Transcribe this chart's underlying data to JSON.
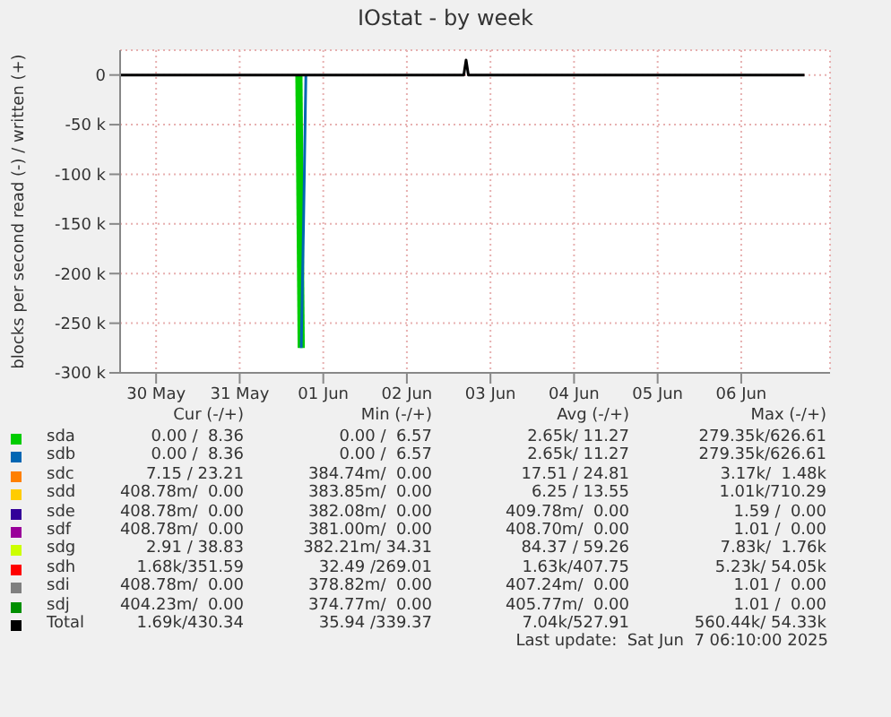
{
  "chart_data": {
    "type": "line",
    "title": "IOstat - by week",
    "ylabel": "blocks per second read (-) / written (+)",
    "x": [
      "2025-05-30T01:40",
      "2025-06-01T05:00",
      "2025-06-01T05:40",
      "2025-06-01T06:20",
      "2025-06-01T07:00",
      "2025-06-03T04:20",
      "2025-06-03T05:00",
      "2025-06-03T05:40",
      "2025-06-07T06:10"
    ],
    "xlim": [
      "2025-05-30T01:40",
      "2025-06-07T13:30"
    ],
    "xticks": [
      {
        "value": "2025-05-30T12:00",
        "label": "30 May"
      },
      {
        "value": "2025-05-31T12:00",
        "label": "31 May"
      },
      {
        "value": "2025-06-01T12:00",
        "label": "01 Jun"
      },
      {
        "value": "2025-06-02T12:00",
        "label": "02 Jun"
      },
      {
        "value": "2025-06-03T12:00",
        "label": "03 Jun"
      },
      {
        "value": "2025-06-04T12:00",
        "label": "04 Jun"
      },
      {
        "value": "2025-06-05T12:00",
        "label": "05 Jun"
      },
      {
        "value": "2025-06-06T12:00",
        "label": "06 Jun"
      }
    ],
    "ylim": [
      -300000,
      25000
    ],
    "yticks": [
      0,
      {
        "value": -50000,
        "label": "-50 k"
      },
      {
        "value": -100000,
        "label": "-100 k"
      },
      {
        "value": -150000,
        "label": "-150 k"
      },
      {
        "value": -200000,
        "label": "-200 k"
      },
      {
        "value": -250000,
        "label": "-250 k"
      },
      {
        "value": -300000,
        "label": "-300 k"
      }
    ],
    "grid": true,
    "legend": "bottom",
    "marker": "none",
    "line_style": "solid",
    "series": [
      {
        "name": "sda",
        "color": "#00cc00",
        "values": [
          null,
          0,
          -275000,
          null,
          null,
          null,
          null,
          null,
          null
        ]
      },
      {
        "name": "sdb",
        "color": "#0066b3",
        "values": [
          null,
          null,
          -275000,
          -150000,
          0,
          null,
          null,
          null,
          null
        ]
      },
      {
        "name": "sdc",
        "color": "#ff8000",
        "values": [
          null,
          null,
          null,
          null,
          null,
          null,
          null,
          null,
          null
        ]
      },
      {
        "name": "sdd",
        "color": "#ffcc00",
        "values": [
          null,
          null,
          null,
          null,
          null,
          null,
          null,
          null,
          null
        ]
      },
      {
        "name": "sde",
        "color": "#330099",
        "values": [
          null,
          null,
          null,
          null,
          null,
          null,
          null,
          null,
          null
        ]
      },
      {
        "name": "sdf",
        "color": "#990099",
        "values": [
          null,
          null,
          null,
          null,
          null,
          null,
          null,
          null,
          null
        ]
      },
      {
        "name": "sdg",
        "color": "#ccff00",
        "values": [
          null,
          null,
          null,
          null,
          null,
          null,
          null,
          null,
          null
        ]
      },
      {
        "name": "sdh",
        "color": "#ff0000",
        "values": [
          null,
          null,
          null,
          null,
          null,
          null,
          null,
          null,
          null
        ]
      },
      {
        "name": "sdi",
        "color": "#808080",
        "values": [
          null,
          null,
          null,
          null,
          null,
          null,
          null,
          null,
          null
        ]
      },
      {
        "name": "sdj",
        "color": "#008f00",
        "values": [
          null,
          null,
          null,
          null,
          null,
          null,
          null,
          null,
          null
        ]
      },
      {
        "name": "Total",
        "color": "#000000",
        "values": [
          0,
          0,
          0,
          0,
          0,
          0,
          15000,
          0,
          0
        ]
      }
    ],
    "annotations": [
      "Cur (-/+)",
      "Min (-/+)",
      "Avg (-/+)",
      "Max (-/+)",
      "0.00 /  8.36",
      "0.00 /  6.57",
      "2.65k/ 11.27",
      "279.35k/626.61",
      "0.00 /  8.36",
      "0.00 /  6.57",
      "2.65k/ 11.27",
      "279.35k/626.61",
      "7.15 / 23.21",
      "384.74m/  0.00",
      "17.51 / 24.81",
      "3.17k/  1.48k",
      "408.78m/  0.00",
      "383.85m/  0.00",
      "6.25 / 13.55",
      "1.01k/710.29",
      "408.78m/  0.00",
      "382.08m/  0.00",
      "409.78m/  0.00",
      "1.59 /  0.00",
      "408.78m/  0.00",
      "381.00m/  0.00",
      "408.70m/  0.00",
      "1.01 /  0.00",
      "2.91 / 38.83",
      "382.21m/ 34.31",
      "84.37 / 59.26",
      "7.83k/  1.76k",
      "1.68k/351.59",
      "32.49 /269.01",
      "1.63k/407.75",
      "5.23k/ 54.05k",
      "408.78m/  0.00",
      "378.82m/  0.00",
      "407.24m/  0.00",
      "1.01 /  0.00",
      "404.23m/  0.00",
      "374.77m/  0.00",
      "405.77m/  0.00",
      "1.01 /  0.00",
      "1.69k/430.34",
      "35.94 /339.37",
      "7.04k/527.91",
      "560.44k/ 54.33k",
      "Last update:  Sat Jun  7 06:10:00 2025"
    ]
  }
}
